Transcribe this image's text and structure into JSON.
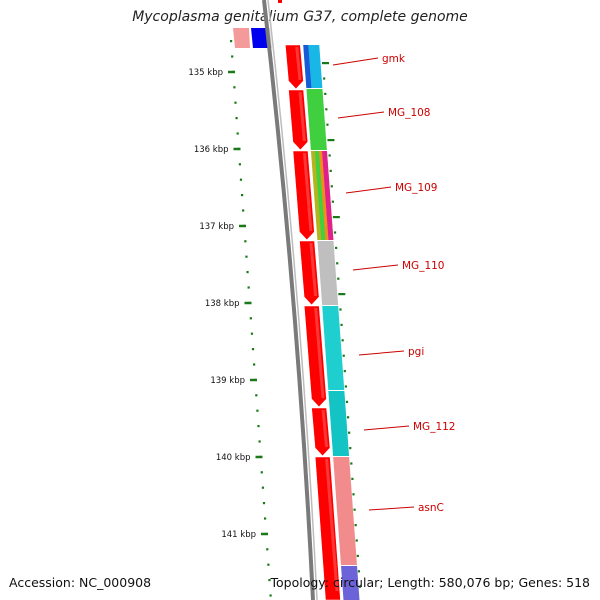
{
  "title": "Mycoplasma genitalium G37, complete genome",
  "footer": {
    "accession": "Accession: NC_000908",
    "genome_info": "Topology: circular; Length: 580,076 bp; Genes: 518"
  },
  "colors": {
    "cds": "#ff0000",
    "backbone": "#777777",
    "ticks": "#1a7a1a",
    "label_lines": "#cc0000"
  },
  "ticks": [
    "135 kbp",
    "136 kbp",
    "137 kbp",
    "138 kbp",
    "139 kbp",
    "140 kbp",
    "141 kbp"
  ],
  "genes": [
    {
      "name": "gmk",
      "color": "#19b7e6"
    },
    {
      "name": "MG_108",
      "color": "#3fcf3f"
    },
    {
      "name": "MG_109",
      "color": "#b4b41e"
    },
    {
      "name": "MG_110",
      "color": "#bfbfbf"
    },
    {
      "name": "pgi",
      "color": "#1fcfcf"
    },
    {
      "name": "MG_112",
      "color": "#14c3c3"
    },
    {
      "name": "asnC",
      "color": "#f28c8c"
    }
  ]
}
